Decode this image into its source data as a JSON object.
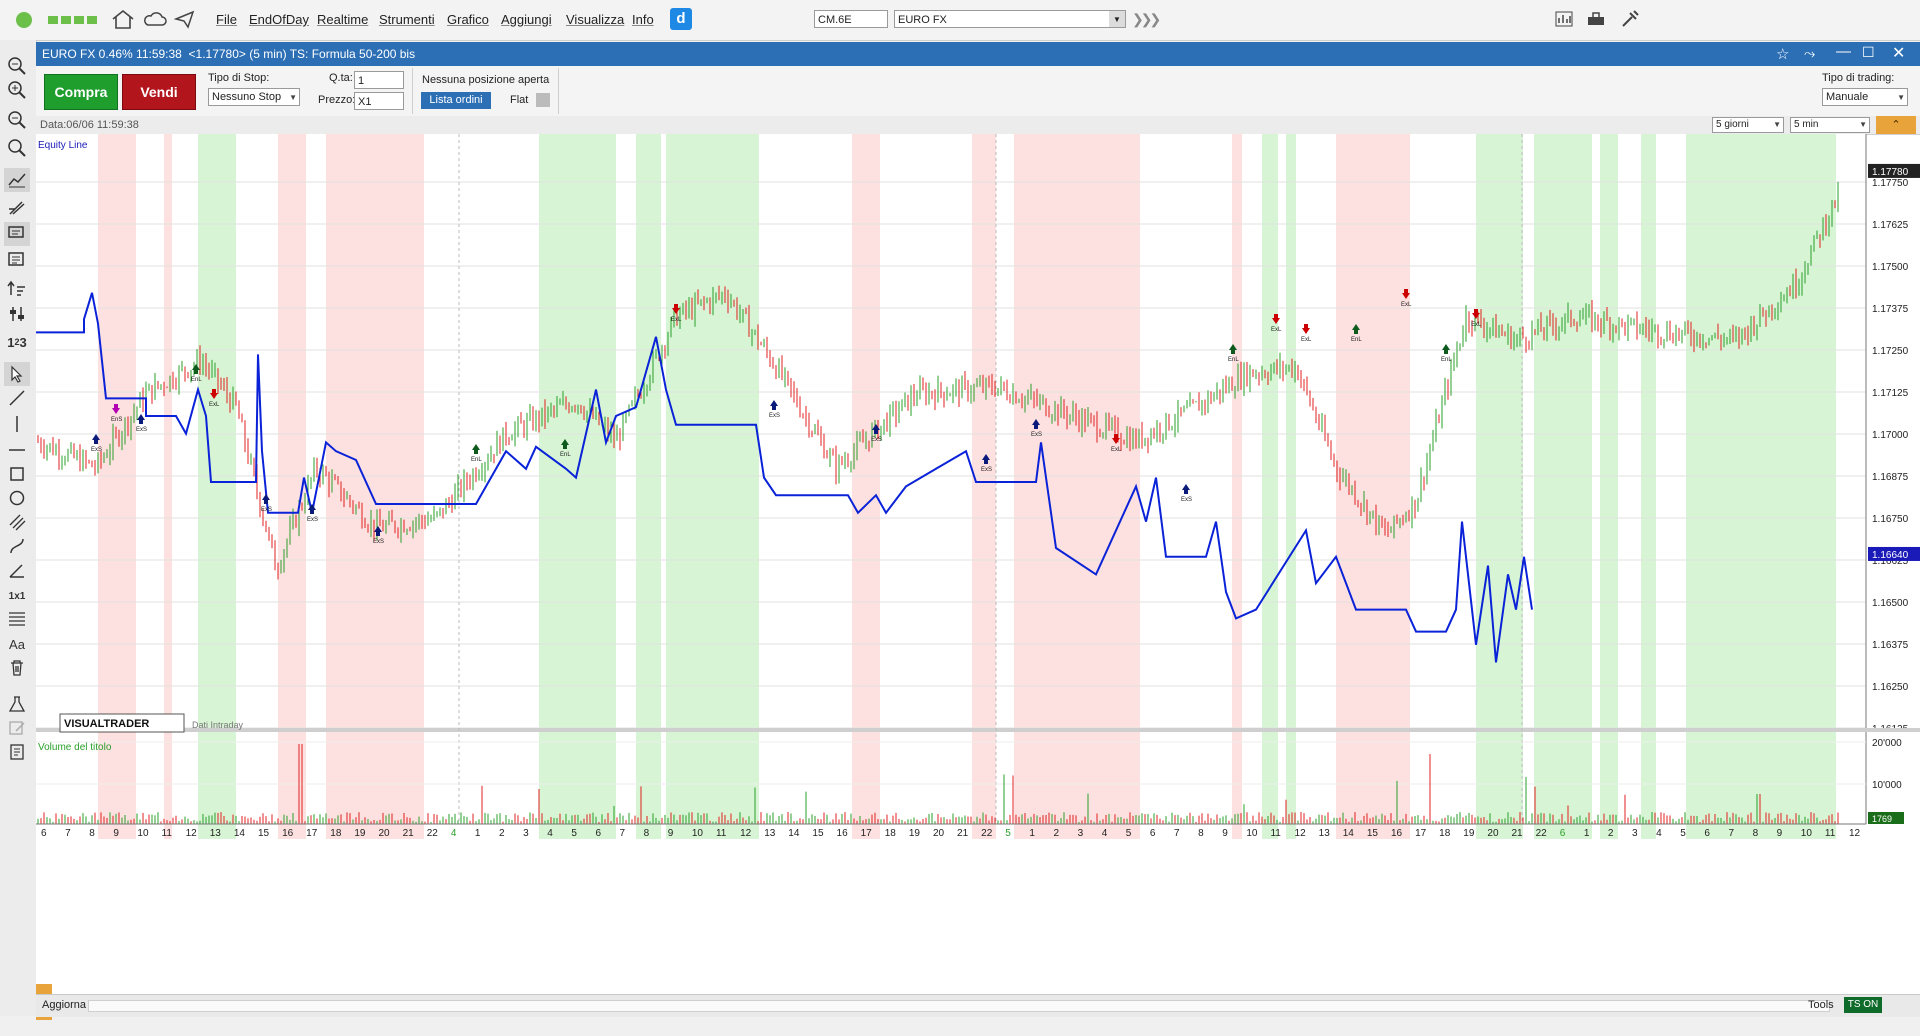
{
  "menu": {
    "items": [
      "File",
      "EndOfDay",
      "Realtime",
      "Strumenti",
      "Grafico",
      "Aggiungi",
      "Visualizza",
      "Info"
    ],
    "symbol_code": "CM.6E",
    "symbol_name": "EURO FX"
  },
  "window": {
    "title": "EURO FX 0.46% 11:59:38  <1.17780> (5 min) TS: Formula 50-200 bis"
  },
  "controls": {
    "buy": "Compra",
    "sell": "Vendi",
    "stop_type_label": "Tipo di Stop:",
    "stop_type_value": "Nessuno Stop",
    "qty_label": "Q.ta:",
    "qty_value": "1",
    "price_label": "Prezzo:",
    "price_value": "X1",
    "position_status": "Nessuna posizione aperta",
    "orders_button": "Lista ordini",
    "flat_label": "Flat",
    "trading_type_label": "Tipo di trading:",
    "trading_type_value": "Manuale"
  },
  "infobar": {
    "date_text": "Data:06/06 11:59:38",
    "period": "5 giorni",
    "interval": "5 min"
  },
  "chart": {
    "equity_label": "Equity Line",
    "volume_label": "Volume del titolo",
    "brand": "VISUALTRADER",
    "data_note": "Dati Intraday",
    "last_price": "1.17780",
    "equity_value": "1.16640",
    "volume_value": "1769",
    "price_ticks": [
      "1.17750",
      "1.17625",
      "1.17500",
      "1.17375",
      "1.17250",
      "1.17125",
      "1.17000",
      "1.16875",
      "1.16750",
      "1.16625",
      "1.16500",
      "1.16375",
      "1.16250",
      "1.16125"
    ],
    "volume_ticks": [
      "20'000",
      "10'000"
    ],
    "time_labels": [
      "6",
      "7",
      "8",
      "9",
      "10",
      "11",
      "12",
      "13",
      "14",
      "15",
      "16",
      "17",
      "18",
      "19",
      "20",
      "21",
      "22",
      "4",
      "1",
      "2",
      "3",
      "4",
      "5",
      "6",
      "7",
      "8",
      "9",
      "10",
      "11",
      "12",
      "13",
      "14",
      "15",
      "16",
      "17",
      "18",
      "19",
      "20",
      "21",
      "22",
      "5",
      "1",
      "2",
      "3",
      "4",
      "5",
      "6",
      "7",
      "8",
      "9",
      "10",
      "11",
      "12",
      "13",
      "14",
      "15",
      "16",
      "17",
      "18",
      "19",
      "20",
      "21",
      "22",
      "6",
      "1",
      "2",
      "3",
      "4",
      "5",
      "6",
      "7",
      "8",
      "9",
      "10",
      "11",
      "12"
    ],
    "signal_labels": [
      "ExS",
      "ExL",
      "EnL",
      "EnS"
    ]
  },
  "bottom": {
    "refresh": "Aggiorna",
    "tools": "Tools",
    "ts": "TS ON"
  },
  "colors": {
    "title_blue": "#2c6fb5",
    "equity_blue": "#0a22d8",
    "long_zone": "#d7f5d4",
    "short_zone": "#fde0e0",
    "bull": "#2aa02a",
    "bear": "#e02020"
  }
}
